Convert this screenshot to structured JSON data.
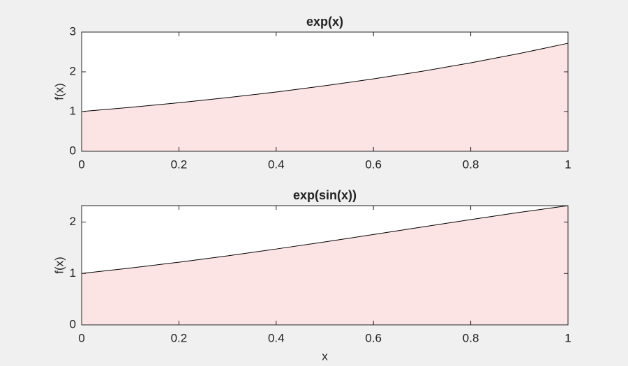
{
  "chart_data": [
    {
      "type": "area",
      "title": "exp(x)",
      "ylabel": "f(x)",
      "x": [
        0,
        0.1,
        0.2,
        0.3,
        0.4,
        0.5,
        0.6,
        0.7,
        0.8,
        0.9,
        1
      ],
      "values": [
        1,
        1.1052,
        1.2214,
        1.3499,
        1.4918,
        1.6487,
        1.8221,
        2.0138,
        2.2255,
        2.4596,
        2.7183
      ],
      "xlim": [
        0,
        1
      ],
      "ylim": [
        0,
        3
      ],
      "xticks": [
        0,
        0.2,
        0.4,
        0.6,
        0.8,
        1
      ],
      "yticks": [
        0,
        1,
        2,
        3
      ],
      "color": "#fde4e4",
      "line_color": "#000000"
    },
    {
      "type": "area",
      "title": "exp(sin(x))",
      "ylabel": "f(x)",
      "xlabel": "x",
      "x": [
        0,
        0.1,
        0.2,
        0.3,
        0.4,
        0.5,
        0.6,
        0.7,
        0.8,
        0.9,
        1
      ],
      "values": [
        1,
        1.105,
        1.2198,
        1.3438,
        1.4761,
        1.6151,
        1.7586,
        1.9045,
        2.049,
        2.1887,
        2.3198
      ],
      "xlim": [
        0,
        1
      ],
      "ylim": [
        0,
        2.3198
      ],
      "xticks": [
        0,
        0.2,
        0.4,
        0.6,
        0.8,
        1
      ],
      "yticks": [
        0,
        1,
        2
      ],
      "color": "#fde4e4",
      "line_color": "#000000"
    }
  ]
}
